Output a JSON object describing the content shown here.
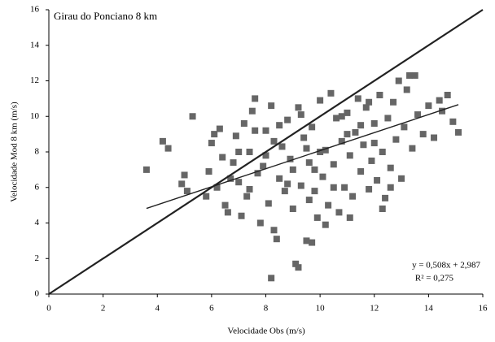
{
  "chart_data": {
    "type": "scatter",
    "annotation": "Girau do Ponciano 8 km",
    "equation": "y = 0,508x + 2,987",
    "r2": "R² = 0,275",
    "x_label": "Velocidade Obs (m/s)",
    "y_label": "Velocidade Mod 8 km (m/s)",
    "color": "#666666",
    "xlim": [
      0,
      16
    ],
    "ylim": [
      0,
      16
    ],
    "xticks": [
      0,
      2,
      4,
      6,
      8,
      10,
      12,
      14,
      16
    ],
    "yticks": [
      0,
      2,
      4,
      6,
      8,
      10,
      12,
      14,
      16
    ],
    "lines": [
      {
        "x": [
          0,
          16
        ],
        "y": [
          0,
          16
        ]
      },
      {
        "x": [
          3.6,
          15.1
        ],
        "y": [
          4.82,
          10.66
        ]
      }
    ],
    "x": [
      3.6,
      4.2,
      4.4,
      4.9,
      5.0,
      5.1,
      5.3,
      5.8,
      5.9,
      6.0,
      6.1,
      6.3,
      6.2,
      6.4,
      6.5,
      6.6,
      6.8,
      6.9,
      7.0,
      7.1,
      7.2,
      7.3,
      7.4,
      7.5,
      7.6,
      7.7,
      7.8,
      7.9,
      8.0,
      8.1,
      8.2,
      8.2,
      8.3,
      8.4,
      8.5,
      8.6,
      8.7,
      8.8,
      8.9,
      9.0,
      9.1,
      9.2,
      9.2,
      9.3,
      9.4,
      9.5,
      9.6,
      9.7,
      9.7,
      9.8,
      9.9,
      10.0,
      10.1,
      10.2,
      10.3,
      10.4,
      10.5,
      10.6,
      10.7,
      10.8,
      10.9,
      11.0,
      11.1,
      11.2,
      11.3,
      11.4,
      11.5,
      11.6,
      11.7,
      11.8,
      11.9,
      12.0,
      12.1,
      12.2,
      12.3,
      12.4,
      12.5,
      12.6,
      12.7,
      12.8,
      12.9,
      13.0,
      13.1,
      13.2,
      13.3,
      13.4,
      13.5,
      13.6,
      13.8,
      14.0,
      14.2,
      14.4,
      14.5,
      14.7,
      14.9,
      15.1,
      7.0,
      7.4,
      8.0,
      8.5,
      9.0,
      9.5,
      10.0,
      10.5,
      11.0,
      11.5,
      12.0,
      8.8,
      9.8,
      10.8,
      11.8,
      6.7,
      7.6,
      12.3,
      12.6,
      10.2,
      11.1,
      9.3,
      8.3,
      9.6
    ],
    "values": [
      7.0,
      8.6,
      8.2,
      6.2,
      6.7,
      5.8,
      10.0,
      5.5,
      6.9,
      8.5,
      9.0,
      9.3,
      6.0,
      7.7,
      5.0,
      4.6,
      7.4,
      8.9,
      6.3,
      4.4,
      9.6,
      5.5,
      8.0,
      10.3,
      11.0,
      6.8,
      4.0,
      7.2,
      9.2,
      5.1,
      10.6,
      0.9,
      3.6,
      3.1,
      6.5,
      8.3,
      5.8,
      9.8,
      7.6,
      4.8,
      1.7,
      1.5,
      10.5,
      6.1,
      8.8,
      3.0,
      5.3,
      2.9,
      9.4,
      7.0,
      4.3,
      10.9,
      6.6,
      8.1,
      5.0,
      11.3,
      7.3,
      9.9,
      4.6,
      8.6,
      6.0,
      10.2,
      7.8,
      5.5,
      9.1,
      11.0,
      6.9,
      8.4,
      10.5,
      5.9,
      7.5,
      9.6,
      6.4,
      11.2,
      8.0,
      5.4,
      9.9,
      7.1,
      10.8,
      8.7,
      12.0,
      6.5,
      9.4,
      11.5,
      12.3,
      8.2,
      12.3,
      10.1,
      9.0,
      10.6,
      8.8,
      10.9,
      10.3,
      11.2,
      9.7,
      9.1,
      8.0,
      5.9,
      7.8,
      9.5,
      7.0,
      8.2,
      8.0,
      6.0,
      9.0,
      9.5,
      8.5,
      6.2,
      5.8,
      10.0,
      10.8,
      6.5,
      9.2,
      4.8,
      6.0,
      3.9,
      4.3,
      10.1,
      8.6,
      7.4
    ]
  }
}
